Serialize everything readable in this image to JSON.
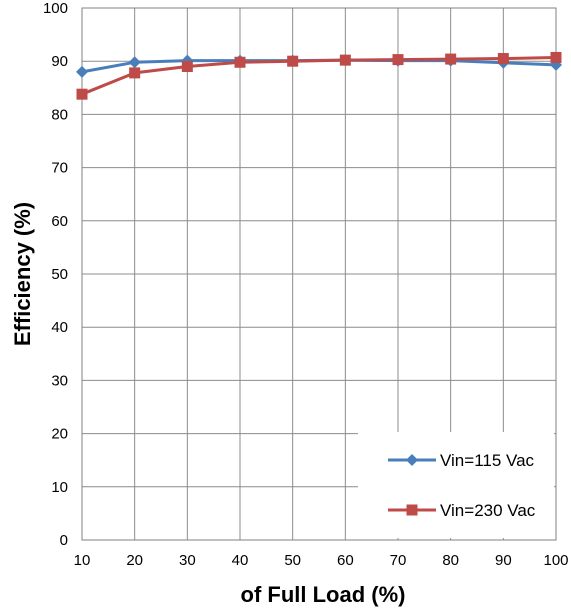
{
  "chart_data": {
    "type": "line",
    "title": "",
    "xlabel": "of Full Load (%)",
    "ylabel": "Efficiency (%)",
    "x": [
      10,
      20,
      30,
      40,
      50,
      60,
      70,
      80,
      90,
      100
    ],
    "xticks": [
      "10",
      "20",
      "30",
      "40",
      "50",
      "60",
      "70",
      "80",
      "90",
      "100"
    ],
    "yticks": [
      "0",
      "10",
      "20",
      "30",
      "40",
      "50",
      "60",
      "70",
      "80",
      "90",
      "100"
    ],
    "xlim": [
      10,
      100
    ],
    "ylim": [
      0,
      100
    ],
    "grid": true,
    "legend_position": "bottom-right",
    "series": [
      {
        "name": "Vin=115 Vac",
        "color": "#4a7ebb",
        "marker": "diamond",
        "values": [
          88.0,
          89.8,
          90.1,
          90.1,
          90.1,
          90.2,
          90.1,
          90.1,
          89.7,
          89.3
        ]
      },
      {
        "name": "Vin=230 Vac",
        "color": "#be4b48",
        "marker": "square",
        "values": [
          83.8,
          87.8,
          89.0,
          89.8,
          90.0,
          90.2,
          90.3,
          90.4,
          90.5,
          90.7
        ]
      }
    ]
  }
}
